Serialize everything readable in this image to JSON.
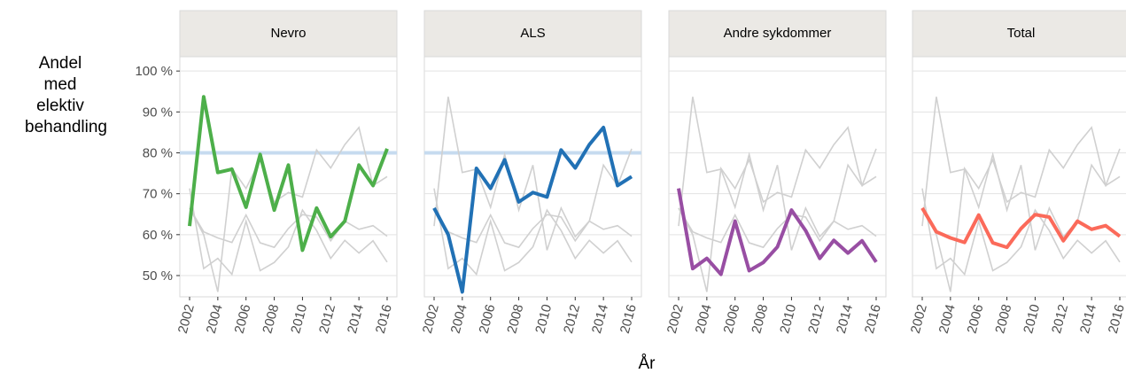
{
  "chart_data": {
    "type": "line",
    "ylabel": "Andel med elektiv behandling",
    "xlabel": "År",
    "x": [
      2002,
      2003,
      2004,
      2005,
      2006,
      2007,
      2008,
      2009,
      2010,
      2011,
      2012,
      2013,
      2014,
      2015,
      2016
    ],
    "xlim": [
      2001.31,
      2016.69
    ],
    "xticks": [
      2002,
      2004,
      2006,
      2008,
      2010,
      2012,
      2014,
      2016
    ],
    "ylim": [
      44.8,
      103.5
    ],
    "yticks": [
      {
        "value": 50,
        "label": "50 %"
      },
      {
        "value": 60,
        "label": "60 %"
      },
      {
        "value": 70,
        "label": "70 %"
      },
      {
        "value": 80,
        "label": "80 %"
      },
      {
        "value": 90,
        "label": "90 %"
      },
      {
        "value": 100,
        "label": "100 %"
      }
    ],
    "grid": true,
    "context_color": "#d0d0d0",
    "target_color": "#c6dbef",
    "series": [
      {
        "name": "Nevro",
        "color": "#4daf4a",
        "target": 80,
        "values": [
          62.1,
          93.7,
          75.2,
          76,
          66.7,
          79.6,
          66,
          77,
          56.2,
          66.5,
          59.5,
          63.3,
          77,
          72,
          81
        ]
      },
      {
        "name": "ALS",
        "color": "#2171b5",
        "target": 80,
        "values": [
          66.5,
          60,
          46,
          76.2,
          71.3,
          78.3,
          68,
          70.3,
          69.2,
          80.7,
          76.3,
          82,
          86.2,
          72,
          74.2
        ]
      },
      {
        "name": "Andre sykdommer",
        "color": "#984ea3",
        "values": [
          71.3,
          51.7,
          54.2,
          50.3,
          63.3,
          51.2,
          53.2,
          57,
          66,
          61,
          54.2,
          58.6,
          55.5,
          58.5,
          53.3
        ]
      },
      {
        "name": "Total",
        "color": "#fb6a5a",
        "values": [
          66.5,
          60.7,
          59.2,
          58.1,
          64.8,
          58,
          56.9,
          61.5,
          64.9,
          64.3,
          58.5,
          63.3,
          61.3,
          62.2,
          59.6
        ]
      }
    ]
  }
}
